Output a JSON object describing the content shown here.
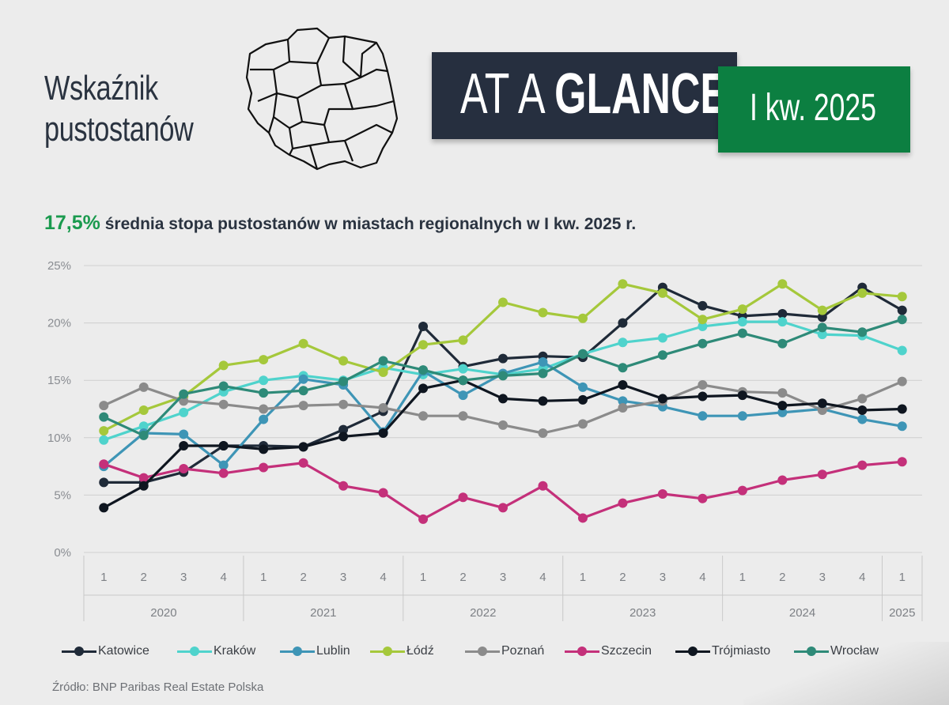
{
  "header": {
    "title_line1": "Wskaźnik",
    "title_line2": "pustostanów",
    "banner_light": "AT A ",
    "banner_bold": "GLANCE",
    "period": "I kw. 2025"
  },
  "headline": {
    "value": "17,5%",
    "text": " średnia stopa pustostanów w miastach regionalnych w I kw. 2025 r."
  },
  "source": "Źródło: BNP Paribas Real Estate Polska",
  "chart_data": {
    "type": "line",
    "categories": [
      "1",
      "2",
      "3",
      "4",
      "1",
      "2",
      "3",
      "4",
      "1",
      "2",
      "3",
      "4",
      "1",
      "2",
      "3",
      "4",
      "1",
      "2",
      "3",
      "4",
      "1"
    ],
    "year_groups": [
      {
        "label": "2020",
        "count": 4
      },
      {
        "label": "2021",
        "count": 4
      },
      {
        "label": "2022",
        "count": 4
      },
      {
        "label": "2023",
        "count": 4
      },
      {
        "label": "2024",
        "count": 4
      },
      {
        "label": "2025",
        "count": 1
      }
    ],
    "ylim": [
      0,
      25
    ],
    "yticks": [
      0,
      5,
      10,
      15,
      20,
      25
    ],
    "ytick_labels": [
      "0%",
      "5%",
      "10%",
      "15%",
      "20%",
      "25%"
    ],
    "grid": true,
    "legend_position": "bottom",
    "series": [
      {
        "name": "Katowice",
        "color": "#1f2a38",
        "values": [
          6.1,
          6.1,
          7.0,
          9.3,
          9.3,
          9.2,
          10.7,
          12.3,
          19.7,
          16.2,
          16.9,
          17.1,
          17.0,
          20.0,
          23.1,
          21.5,
          20.6,
          20.8,
          20.5,
          23.1,
          21.1
        ]
      },
      {
        "name": "Kraków",
        "color": "#4fd3cc",
        "values": [
          9.8,
          11.0,
          12.2,
          14.0,
          15.0,
          15.4,
          15.0,
          16.1,
          15.5,
          16.0,
          15.5,
          16.0,
          17.3,
          18.3,
          18.7,
          19.7,
          20.1,
          20.1,
          19.0,
          18.9,
          17.6
        ]
      },
      {
        "name": "Lublin",
        "color": "#3e95b6",
        "values": [
          7.5,
          10.4,
          10.3,
          7.6,
          11.6,
          15.1,
          14.6,
          10.5,
          15.8,
          13.7,
          15.6,
          16.6,
          14.4,
          13.2,
          12.7,
          11.9,
          11.9,
          12.2,
          12.5,
          11.6,
          11.0
        ]
      },
      {
        "name": "Łódź",
        "color": "#a5c83b",
        "values": [
          10.6,
          12.4,
          13.6,
          16.3,
          16.8,
          18.2,
          16.7,
          15.7,
          18.1,
          18.5,
          21.8,
          20.9,
          20.4,
          23.4,
          22.6,
          20.3,
          21.2,
          23.4,
          21.1,
          22.6,
          22.3
        ]
      },
      {
        "name": "Poznań",
        "color": "#8b8b8b",
        "values": [
          12.8,
          14.4,
          13.2,
          12.9,
          12.5,
          12.8,
          12.9,
          12.6,
          11.9,
          11.9,
          11.1,
          10.4,
          11.2,
          12.6,
          13.2,
          14.6,
          14.0,
          13.9,
          12.4,
          13.4,
          14.9
        ]
      },
      {
        "name": "Szczecin",
        "color": "#c4307a",
        "values": [
          7.7,
          6.5,
          7.3,
          6.9,
          7.4,
          7.8,
          5.8,
          5.2,
          2.9,
          4.8,
          3.9,
          5.8,
          3.0,
          4.3,
          5.1,
          4.7,
          5.4,
          6.3,
          6.8,
          7.6,
          7.9
        ]
      },
      {
        "name": "Trójmiasto",
        "color": "#0f1620",
        "values": [
          3.9,
          5.8,
          9.3,
          9.3,
          9.0,
          9.2,
          10.1,
          10.4,
          14.3,
          15.0,
          13.4,
          13.2,
          13.3,
          14.6,
          13.4,
          13.6,
          13.7,
          12.8,
          13.0,
          12.4,
          12.5
        ]
      },
      {
        "name": "Wrocław",
        "color": "#2e8a78",
        "values": [
          11.8,
          10.2,
          13.8,
          14.5,
          13.9,
          14.1,
          14.9,
          16.7,
          15.9,
          15.0,
          15.4,
          15.6,
          17.3,
          16.1,
          17.2,
          18.2,
          19.1,
          18.2,
          19.6,
          19.2,
          20.3
        ]
      }
    ]
  }
}
